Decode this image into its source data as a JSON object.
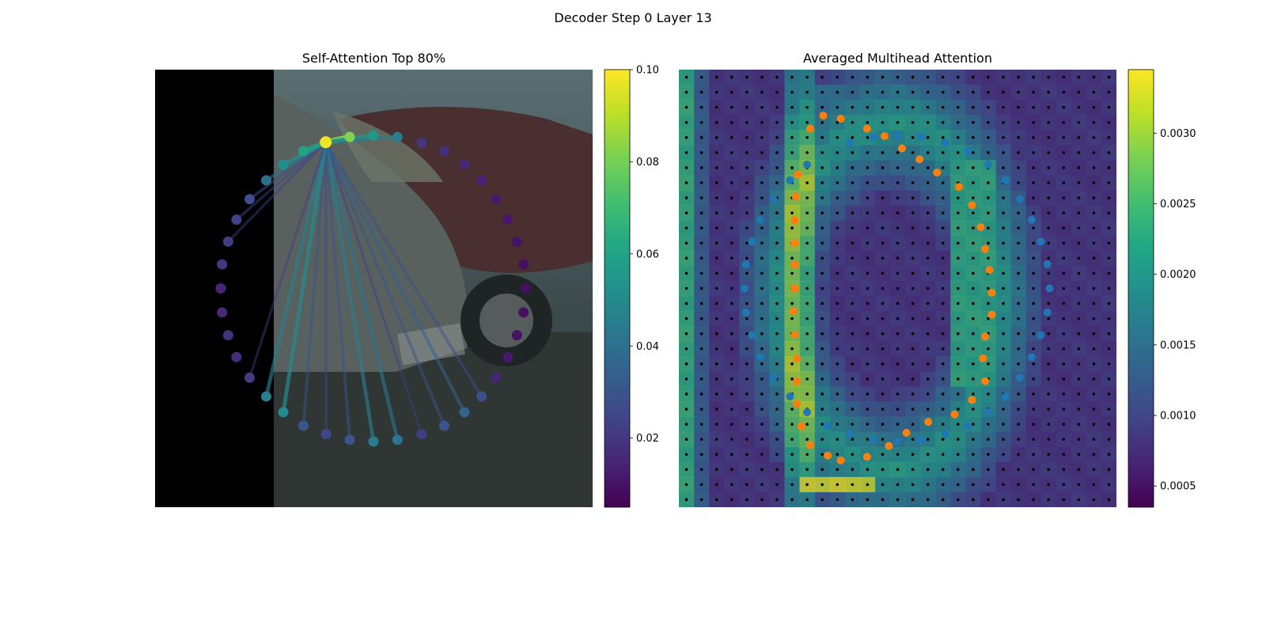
{
  "figure": {
    "suptitle": "Decoder Step 0 Layer 13"
  },
  "chart_data": [
    {
      "type": "scatter",
      "title": "Self-Attention Top 80%",
      "description_note": "",
      "colormap": "viridis",
      "colorbar": {
        "range": [
          0.005,
          0.1
        ],
        "ticks": [
          0.02,
          0.04,
          0.06,
          0.08,
          0.1
        ],
        "tick_labels": [
          "0.02",
          "0.04",
          "0.06",
          "0.08",
          "0.10"
        ]
      },
      "query_point": {
        "x": 0.39,
        "y": 0.166,
        "weight": 0.098
      },
      "points": [
        {
          "x": 0.445,
          "y": 0.154,
          "w": 0.082
        },
        {
          "x": 0.499,
          "y": 0.15,
          "w": 0.055
        },
        {
          "x": 0.554,
          "y": 0.154,
          "w": 0.045
        },
        {
          "x": 0.609,
          "y": 0.167,
          "w": 0.02
        },
        {
          "x": 0.661,
          "y": 0.186,
          "w": 0.018
        },
        {
          "x": 0.707,
          "y": 0.217,
          "w": 0.016
        },
        {
          "x": 0.746,
          "y": 0.253,
          "w": 0.014
        },
        {
          "x": 0.779,
          "y": 0.296,
          "w": 0.012
        },
        {
          "x": 0.806,
          "y": 0.343,
          "w": 0.011
        },
        {
          "x": 0.827,
          "y": 0.393,
          "w": 0.01
        },
        {
          "x": 0.842,
          "y": 0.445,
          "w": 0.009
        },
        {
          "x": 0.847,
          "y": 0.5,
          "w": 0.009
        },
        {
          "x": 0.842,
          "y": 0.555,
          "w": 0.009
        },
        {
          "x": 0.827,
          "y": 0.607,
          "w": 0.01
        },
        {
          "x": 0.806,
          "y": 0.657,
          "w": 0.011
        },
        {
          "x": 0.779,
          "y": 0.704,
          "w": 0.015
        },
        {
          "x": 0.746,
          "y": 0.747,
          "w": 0.028
        },
        {
          "x": 0.707,
          "y": 0.783,
          "w": 0.035
        },
        {
          "x": 0.661,
          "y": 0.814,
          "w": 0.03
        },
        {
          "x": 0.609,
          "y": 0.833,
          "w": 0.022
        },
        {
          "x": 0.554,
          "y": 0.846,
          "w": 0.042
        },
        {
          "x": 0.499,
          "y": 0.85,
          "w": 0.044
        },
        {
          "x": 0.445,
          "y": 0.846,
          "w": 0.03
        },
        {
          "x": 0.391,
          "y": 0.833,
          "w": 0.025
        },
        {
          "x": 0.339,
          "y": 0.814,
          "w": 0.03
        },
        {
          "x": 0.293,
          "y": 0.783,
          "w": 0.05
        },
        {
          "x": 0.254,
          "y": 0.747,
          "w": 0.045
        },
        {
          "x": 0.216,
          "y": 0.704,
          "w": 0.022
        },
        {
          "x": 0.186,
          "y": 0.657,
          "w": 0.017
        },
        {
          "x": 0.167,
          "y": 0.607,
          "w": 0.018
        },
        {
          "x": 0.153,
          "y": 0.555,
          "w": 0.016
        },
        {
          "x": 0.15,
          "y": 0.5,
          "w": 0.015
        },
        {
          "x": 0.153,
          "y": 0.445,
          "w": 0.02
        },
        {
          "x": 0.167,
          "y": 0.393,
          "w": 0.022
        },
        {
          "x": 0.186,
          "y": 0.343,
          "w": 0.024
        },
        {
          "x": 0.216,
          "y": 0.296,
          "w": 0.028
        },
        {
          "x": 0.254,
          "y": 0.253,
          "w": 0.04
        },
        {
          "x": 0.293,
          "y": 0.217,
          "w": 0.052
        },
        {
          "x": 0.339,
          "y": 0.186,
          "w": 0.06
        }
      ]
    },
    {
      "type": "heatmap",
      "title": "Averaged Multihead Attention",
      "colormap": "viridis",
      "colorbar": {
        "range": [
          0.00035,
          0.00345
        ],
        "ticks": [
          0.0005,
          0.001,
          0.0015,
          0.002,
          0.0025,
          0.003
        ],
        "tick_labels": [
          "0.0005",
          "0.0010",
          "0.0015",
          "0.0020",
          "0.0025",
          "0.0030"
        ]
      },
      "grid": {
        "rows": 29,
        "cols": 29
      },
      "series": [
        {
          "color": "#ff7f0e",
          "points": [
            {
              "x": 0.3,
              "y": 0.135
            },
            {
              "x": 0.33,
              "y": 0.105
            },
            {
              "x": 0.37,
              "y": 0.112
            },
            {
              "x": 0.43,
              "y": 0.135
            },
            {
              "x": 0.47,
              "y": 0.152
            },
            {
              "x": 0.51,
              "y": 0.18
            },
            {
              "x": 0.55,
              "y": 0.205
            },
            {
              "x": 0.59,
              "y": 0.235
            },
            {
              "x": 0.64,
              "y": 0.268
            },
            {
              "x": 0.67,
              "y": 0.31
            },
            {
              "x": 0.69,
              "y": 0.36
            },
            {
              "x": 0.7,
              "y": 0.41
            },
            {
              "x": 0.71,
              "y": 0.458
            },
            {
              "x": 0.715,
              "y": 0.51
            },
            {
              "x": 0.715,
              "y": 0.56
            },
            {
              "x": 0.7,
              "y": 0.61
            },
            {
              "x": 0.695,
              "y": 0.66
            },
            {
              "x": 0.7,
              "y": 0.712
            },
            {
              "x": 0.67,
              "y": 0.755
            },
            {
              "x": 0.63,
              "y": 0.788
            },
            {
              "x": 0.57,
              "y": 0.805
            },
            {
              "x": 0.52,
              "y": 0.83
            },
            {
              "x": 0.48,
              "y": 0.86
            },
            {
              "x": 0.43,
              "y": 0.885
            },
            {
              "x": 0.37,
              "y": 0.893
            },
            {
              "x": 0.34,
              "y": 0.882
            },
            {
              "x": 0.3,
              "y": 0.858
            },
            {
              "x": 0.28,
              "y": 0.815
            },
            {
              "x": 0.27,
              "y": 0.764
            },
            {
              "x": 0.27,
              "y": 0.713
            },
            {
              "x": 0.27,
              "y": 0.66
            },
            {
              "x": 0.265,
              "y": 0.606
            },
            {
              "x": 0.262,
              "y": 0.552
            },
            {
              "x": 0.265,
              "y": 0.5
            },
            {
              "x": 0.265,
              "y": 0.446
            },
            {
              "x": 0.265,
              "y": 0.396
            },
            {
              "x": 0.265,
              "y": 0.344
            },
            {
              "x": 0.267,
              "y": 0.29
            },
            {
              "x": 0.272,
              "y": 0.24
            }
          ]
        },
        {
          "color": "#1f77b4",
          "points": [
            {
              "x": 0.39,
              "y": 0.166
            },
            {
              "x": 0.445,
              "y": 0.154
            },
            {
              "x": 0.499,
              "y": 0.15
            },
            {
              "x": 0.554,
              "y": 0.154
            },
            {
              "x": 0.609,
              "y": 0.167
            },
            {
              "x": 0.661,
              "y": 0.186
            },
            {
              "x": 0.707,
              "y": 0.217
            },
            {
              "x": 0.746,
              "y": 0.253
            },
            {
              "x": 0.779,
              "y": 0.296
            },
            {
              "x": 0.806,
              "y": 0.343
            },
            {
              "x": 0.827,
              "y": 0.393
            },
            {
              "x": 0.842,
              "y": 0.445
            },
            {
              "x": 0.847,
              "y": 0.5
            },
            {
              "x": 0.842,
              "y": 0.555
            },
            {
              "x": 0.827,
              "y": 0.607
            },
            {
              "x": 0.806,
              "y": 0.657
            },
            {
              "x": 0.779,
              "y": 0.704
            },
            {
              "x": 0.746,
              "y": 0.747
            },
            {
              "x": 0.707,
              "y": 0.783
            },
            {
              "x": 0.661,
              "y": 0.814
            },
            {
              "x": 0.609,
              "y": 0.833
            },
            {
              "x": 0.554,
              "y": 0.846
            },
            {
              "x": 0.499,
              "y": 0.85
            },
            {
              "x": 0.445,
              "y": 0.846
            },
            {
              "x": 0.391,
              "y": 0.833
            },
            {
              "x": 0.339,
              "y": 0.814
            },
            {
              "x": 0.293,
              "y": 0.783
            },
            {
              "x": 0.254,
              "y": 0.747
            },
            {
              "x": 0.216,
              "y": 0.704
            },
            {
              "x": 0.186,
              "y": 0.657
            },
            {
              "x": 0.167,
              "y": 0.607
            },
            {
              "x": 0.153,
              "y": 0.555
            },
            {
              "x": 0.15,
              "y": 0.5
            },
            {
              "x": 0.153,
              "y": 0.445
            },
            {
              "x": 0.167,
              "y": 0.393
            },
            {
              "x": 0.186,
              "y": 0.343
            },
            {
              "x": 0.216,
              "y": 0.296
            },
            {
              "x": 0.254,
              "y": 0.253
            },
            {
              "x": 0.293,
              "y": 0.217
            }
          ]
        }
      ]
    }
  ]
}
